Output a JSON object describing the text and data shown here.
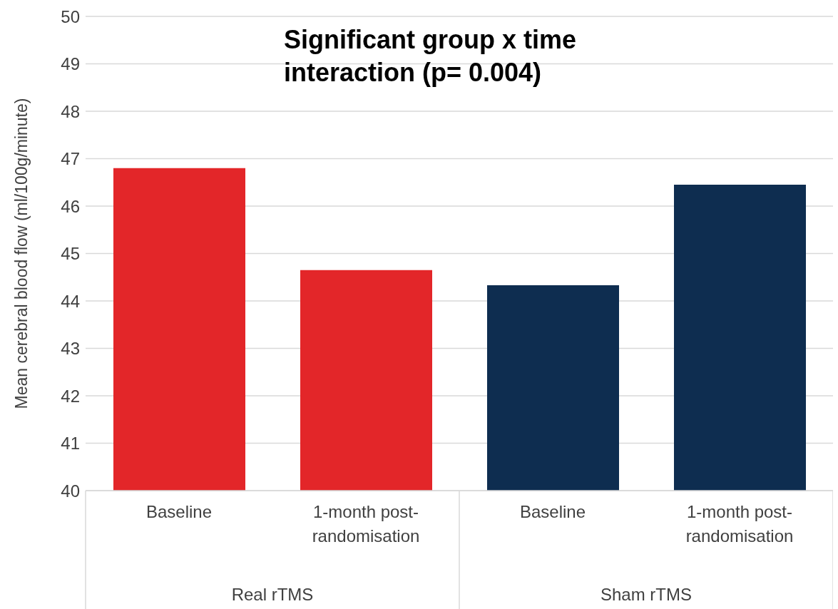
{
  "chart_data": {
    "type": "bar",
    "title": "Significant group x time interaction (p= 0.004)",
    "ylabel": "Mean cerebral blood flow (ml/100g/minute)",
    "categories": [
      "Baseline",
      "1-month post-randomisation",
      "Baseline",
      "1-month post-randomisation"
    ],
    "values": [
      46.8,
      44.65,
      44.33,
      46.45
    ],
    "colors": [
      "#e32629",
      "#e32629",
      "#0e2d50",
      "#0e2d50"
    ],
    "annotations": [
      "Real rTMS",
      "Sham rTMS"
    ],
    "ylim": [
      40,
      50
    ],
    "yticks": [
      40,
      41,
      42,
      43,
      44,
      45,
      46,
      47,
      48,
      49,
      50
    ],
    "grid": "y"
  }
}
